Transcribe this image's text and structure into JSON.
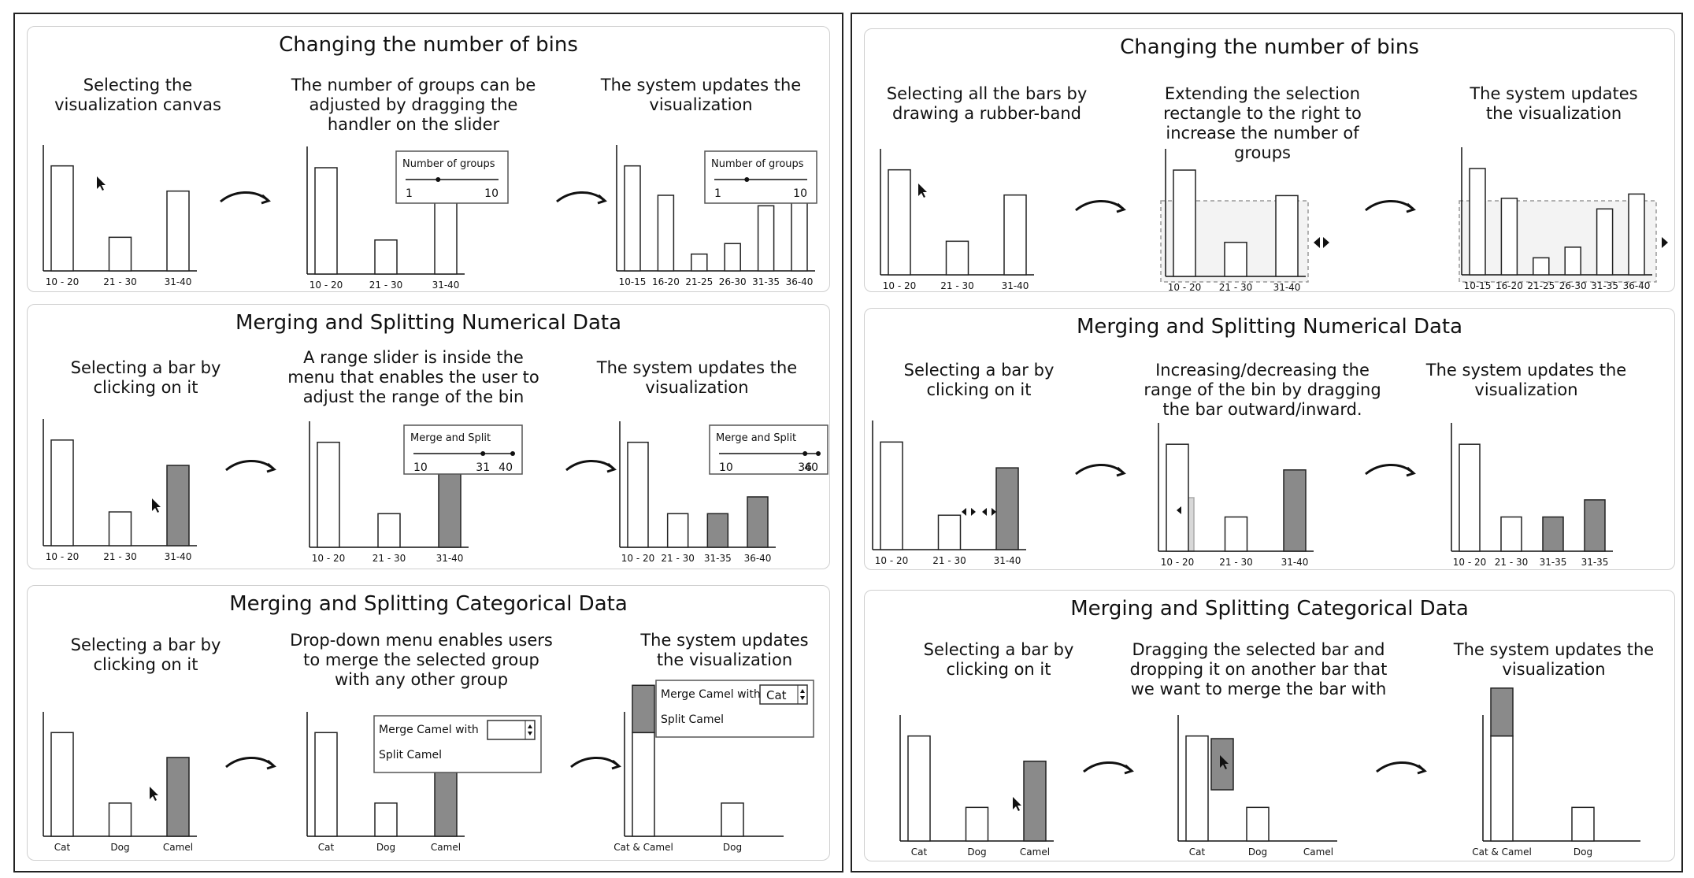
{
  "panels": [
    {
      "sections": [
        {
          "title": "Changing the number of bins",
          "steps": [
            "Selecting the visualization canvas",
            "The number of groups can be adjusted by dragging the handler on the slider",
            "The system updates the visualization"
          ],
          "charts": [
            {
              "categories": [
                "10 - 20",
                "21 - 30",
                "31-40"
              ],
              "values": [
                50,
                16,
                38
              ]
            },
            {
              "categories": [
                "10 - 20",
                "21 - 30",
                "31-40"
              ],
              "values": [
                50,
                16,
                38
              ],
              "popup": {
                "title": "Number of groups",
                "min": "1",
                "max": "10"
              }
            },
            {
              "categories": [
                "10-15",
                "16-20",
                "21-25",
                "26-30",
                "31-35",
                "36-40"
              ],
              "values": [
                50,
                36,
                8,
                13,
                31,
                38
              ],
              "popup": {
                "title": "Number of groups",
                "min": "1",
                "max": "10"
              }
            }
          ]
        },
        {
          "title": "Merging and Splitting Numerical Data",
          "steps": [
            "Selecting a bar by clicking on it",
            "A range slider is inside the menu that enables the user to adjust the range of the bin",
            "The system updates the visualization"
          ],
          "charts": [
            {
              "categories": [
                "10 - 20",
                "21 - 30",
                "31-40"
              ],
              "values": [
                50,
                16,
                38
              ],
              "selected": [
                2
              ]
            },
            {
              "categories": [
                "10 - 20",
                "21 - 30",
                "31-40"
              ],
              "values": [
                50,
                16,
                38
              ],
              "selected": [
                2
              ],
              "popup": {
                "title": "Merge and Split",
                "min": "10",
                "mid": "31",
                "max": "40"
              }
            },
            {
              "categories": [
                "10 - 20",
                "21 - 30",
                "31-35",
                "36-40"
              ],
              "values": [
                50,
                16,
                16,
                24
              ],
              "selected": [
                2,
                3
              ],
              "popup": {
                "title": "Merge and Split",
                "min": "10",
                "mid": "36",
                "max": "40"
              }
            }
          ]
        },
        {
          "title": "Merging and Splitting Categorical Data",
          "steps": [
            "Selecting a bar by clicking on it",
            "Drop-down menu enables users to merge the selected group with any other group",
            "The system updates the visualization"
          ],
          "charts": [
            {
              "categories": [
                "Cat",
                "Dog",
                "Camel"
              ],
              "values": [
                50,
                16,
                38
              ],
              "selected": [
                2
              ]
            },
            {
              "categories": [
                "Cat",
                "Dog",
                "Camel"
              ],
              "values": [
                50,
                16,
                38
              ],
              "selected": [
                2
              ],
              "menu": {
                "merge": "Merge Camel with",
                "split": "Split Camel",
                "value": ""
              }
            },
            {
              "categories": [
                "Cat & Camel",
                "Dog"
              ],
              "values": [
                50,
                16
              ],
              "stack": [
                38,
                0
              ],
              "menu": {
                "merge": "Merge Camel with",
                "split": "Split Camel",
                "value": "Cat"
              }
            }
          ]
        }
      ]
    },
    {
      "sections": [
        {
          "title": "Changing the number of bins",
          "steps": [
            "Selecting all the bars by drawing a rubber-band",
            "Extending the selection rectangle to the right to increase the number of groups",
            "The system updates the visualization"
          ],
          "charts": [
            {
              "categories": [
                "10 - 20",
                "21 - 30",
                "31-40"
              ],
              "values": [
                50,
                16,
                38
              ]
            },
            {
              "categories": [
                "10 - 20",
                "21 - 30",
                "31-40"
              ],
              "values": [
                50,
                16,
                38
              ]
            },
            {
              "categories": [
                "10-15",
                "16-20",
                "21-25",
                "26-30",
                "31-35",
                "36-40"
              ],
              "values": [
                50,
                36,
                8,
                13,
                31,
                38
              ]
            }
          ]
        },
        {
          "title": "Merging and Splitting Numerical Data",
          "steps": [
            "Selecting a bar by clicking on it",
            "Increasing/decreasing the range of the bin by dragging the bar outward/inward.",
            "The system updates the visualization"
          ],
          "charts": [
            {
              "categories": [
                "10 - 20",
                "21 - 30",
                "31-40"
              ],
              "values": [
                50,
                16,
                38
              ],
              "selected": [
                2
              ]
            },
            {
              "categories": [
                "10 - 20",
                "21 - 30",
                "31-40"
              ],
              "values": [
                50,
                16,
                38
              ],
              "selected": [
                2
              ]
            },
            {
              "categories": [
                "10 - 20",
                "21 - 30",
                "31-35",
                "31-35"
              ],
              "values": [
                50,
                16,
                16,
                24
              ],
              "selected": [
                2,
                3
              ]
            }
          ]
        },
        {
          "title": "Merging and Splitting Categorical Data",
          "steps": [
            "Selecting a bar by clicking on it",
            "Dragging the selected bar and dropping it on another bar that we want to merge the bar with",
            "The system updates the visualization"
          ],
          "charts": [
            {
              "categories": [
                "Cat",
                "Dog",
                "Camel"
              ],
              "values": [
                50,
                16,
                38
              ],
              "selected": [
                2
              ]
            },
            {
              "categories": [
                "Cat",
                "Dog",
                "Camel"
              ],
              "values": [
                50,
                16,
                0
              ]
            },
            {
              "categories": [
                "Cat & Camel",
                "Dog"
              ],
              "values": [
                50,
                16
              ],
              "stack": [
                38,
                0
              ]
            }
          ]
        }
      ]
    }
  ]
}
